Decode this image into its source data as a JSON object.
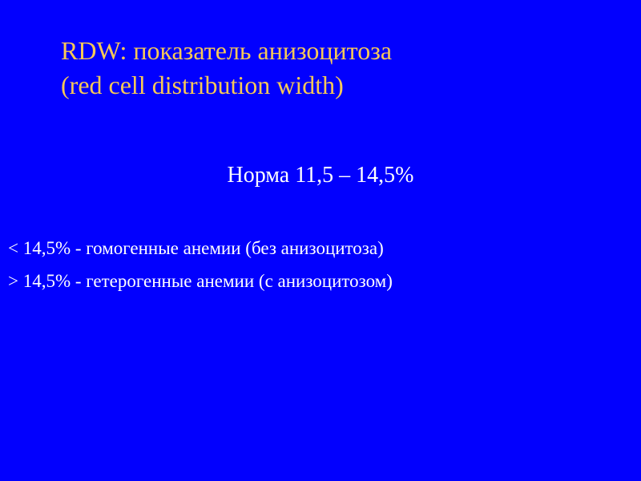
{
  "slide": {
    "background_color": "#0200fe",
    "title": {
      "line1": "RDW: показатель анизоцитоза",
      "line2": "(red cell distribution width)",
      "color": "#f6c857",
      "fontsize": 32
    },
    "norma": {
      "text": "Норма 11,5 – 14,5%",
      "color": "#ffffff",
      "fontsize": 28
    },
    "anemia_types": [
      {
        "text": "< 14,5% - гомогенные анемии (без анизоцитоза)",
        "color": "#ffffff",
        "fontsize": 23
      },
      {
        "text": "> 14,5% - гетерогенные анемии (с анизоцитозом)",
        "color": "#ffffff",
        "fontsize": 23
      }
    ]
  }
}
